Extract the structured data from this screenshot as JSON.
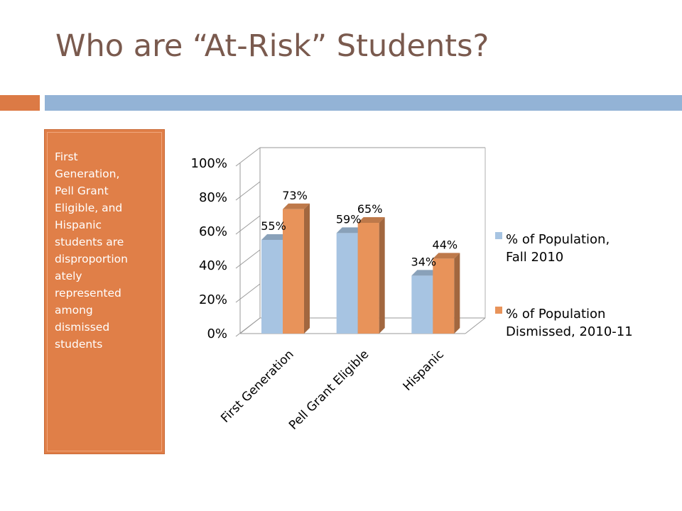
{
  "slide": {
    "title": "Who are “At-Risk” Students?",
    "sidebar_text": "First\nGeneration,\nPell Grant\nEligible, and\nHispanic\nstudents are\ndisproportion\nately\nrepresented\namong\ndismissed\nstudents"
  },
  "colors": {
    "accent_orange": "#e07f48",
    "accent_blue": "#93b3d6",
    "title_color": "#7a5a4e"
  },
  "chart_data": {
    "type": "bar",
    "style": "3d-clustered-column",
    "categories": [
      "First Generation",
      "Pell Grant Eligible",
      "Hispanic"
    ],
    "series": [
      {
        "name": "% of Population, Fall 2010",
        "values": [
          55,
          59,
          34
        ],
        "labels": [
          "55%",
          "59%",
          "34%"
        ],
        "color": "#a7c4e2"
      },
      {
        "name": "% of Population Dismissed, 2010-11",
        "values": [
          73,
          65,
          44
        ],
        "labels": [
          "73%",
          "65%",
          "44%"
        ],
        "color": "#e8935a"
      }
    ],
    "ylim": [
      0,
      100
    ],
    "yticks": [
      0,
      20,
      40,
      60,
      80,
      100
    ],
    "ytick_labels": [
      "0%",
      "20%",
      "40%",
      "60%",
      "80%",
      "100%"
    ],
    "legend_lines": [
      [
        "% of Population,",
        "Fall 2010"
      ],
      [
        "% of Population",
        "Dismissed, 2010-11"
      ]
    ],
    "legend_position": "right",
    "grid": false,
    "xlabel": "",
    "ylabel": "",
    "chart_title": ""
  }
}
